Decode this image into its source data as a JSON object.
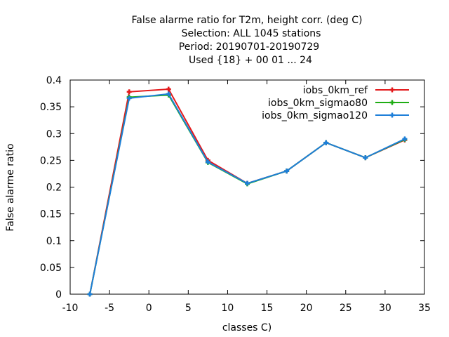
{
  "chart_data": {
    "type": "line",
    "title_lines": [
      "False alarme ratio  for T2m, height corr. (deg C)",
      "Selection: ALL   1045 stations",
      "Period: 20190701-20190729",
      "Used {18} + 00 01 ... 24"
    ],
    "xlabel": "classes C)",
    "ylabel": "False alarme ratio",
    "xlim": [
      -10,
      35
    ],
    "ylim": [
      0,
      0.4
    ],
    "xticks": [
      -10,
      -5,
      0,
      5,
      10,
      15,
      20,
      25,
      30,
      35
    ],
    "yticks": [
      0,
      0.05,
      0.1,
      0.15,
      0.2,
      0.25,
      0.3,
      0.35,
      0.4
    ],
    "ytick_labels": [
      "0",
      "0.05",
      "0.1",
      "0.15",
      "0.2",
      "0.25",
      "0.3",
      "0.35",
      "0.4"
    ],
    "grid": false,
    "legend_position": "top-right",
    "series": [
      {
        "name": "iobs_0km_ref",
        "color": "#e31a1c",
        "x": [
          -7.5,
          -2.5,
          2.5,
          7.5,
          12.5,
          17.5,
          22.5,
          27.5,
          32.5
        ],
        "y": [
          0.0,
          0.378,
          0.383,
          0.25,
          0.207,
          0.23,
          0.283,
          0.255,
          0.288
        ]
      },
      {
        "name": "iobs_0km_sigmao80",
        "color": "#1fad14",
        "x": [
          -7.5,
          -2.5,
          2.5,
          7.5,
          12.5,
          17.5,
          22.5,
          27.5,
          32.5
        ],
        "y": [
          0.0,
          0.368,
          0.372,
          0.246,
          0.206,
          0.23,
          0.283,
          0.255,
          0.289
        ]
      },
      {
        "name": "iobs_0km_sigmao120",
        "color": "#1e7fd9",
        "x": [
          -7.5,
          -2.5,
          2.5,
          7.5,
          12.5,
          17.5,
          22.5,
          27.5,
          32.5
        ],
        "y": [
          0.0,
          0.366,
          0.374,
          0.247,
          0.207,
          0.23,
          0.283,
          0.255,
          0.29
        ]
      }
    ]
  }
}
